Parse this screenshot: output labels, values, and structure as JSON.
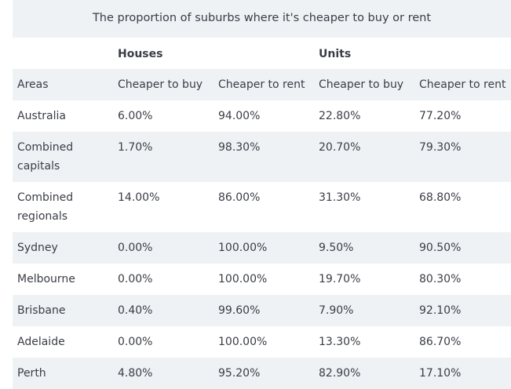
{
  "caption": "The proportion of suburbs where it's cheaper to buy or rent",
  "group_headers": {
    "houses": "Houses",
    "units": "Units"
  },
  "column_headers": [
    "Areas",
    "Cheaper to buy",
    "Cheaper to rent",
    "Cheaper to buy",
    "Cheaper to rent"
  ],
  "rows": [
    {
      "area": [
        "Australia"
      ],
      "houses_buy": "6.00%",
      "houses_rent": "94.00%",
      "units_buy": "22.80%",
      "units_rent": "77.20%"
    },
    {
      "area": [
        "Combined",
        "capitals"
      ],
      "houses_buy": "1.70%",
      "houses_rent": "98.30%",
      "units_buy": "20.70%",
      "units_rent": "79.30%"
    },
    {
      "area": [
        "Combined",
        "regionals"
      ],
      "houses_buy": "14.00%",
      "houses_rent": "86.00%",
      "units_buy": "31.30%",
      "units_rent": "68.80%"
    },
    {
      "area": [
        "Sydney"
      ],
      "houses_buy": "0.00%",
      "houses_rent": "100.00%",
      "units_buy": "9.50%",
      "units_rent": "90.50%"
    },
    {
      "area": [
        "Melbourne"
      ],
      "houses_buy": "0.00%",
      "houses_rent": "100.00%",
      "units_buy": "19.70%",
      "units_rent": "80.30%"
    },
    {
      "area": [
        "Brisbane"
      ],
      "houses_buy": "0.40%",
      "houses_rent": "99.60%",
      "units_buy": "7.90%",
      "units_rent": "92.10%"
    },
    {
      "area": [
        "Adelaide"
      ],
      "houses_buy": "0.00%",
      "houses_rent": "100.00%",
      "units_buy": "13.30%",
      "units_rent": "86.70%"
    },
    {
      "area": [
        "Perth"
      ],
      "houses_buy": "4.80%",
      "houses_rent": "95.20%",
      "units_buy": "82.90%",
      "units_rent": "17.10%"
    }
  ]
}
